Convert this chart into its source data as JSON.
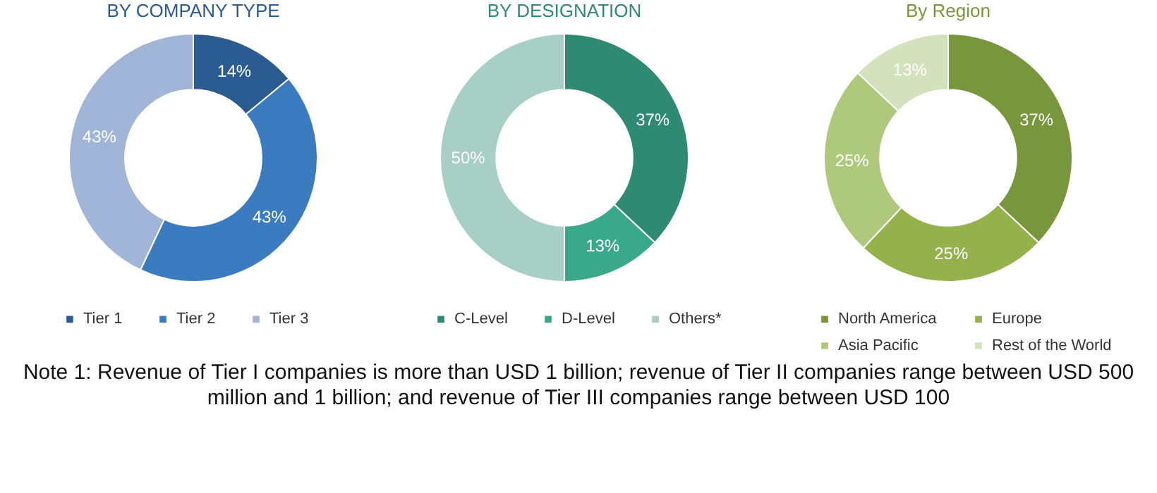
{
  "chart_data": [
    {
      "type": "donut",
      "title": "BY COMPANY TYPE",
      "categories": [
        "Tier 1",
        "Tier 2",
        "Tier 3"
      ],
      "values": [
        14,
        43,
        43
      ],
      "value_labels": [
        "14%",
        "43%",
        "43%"
      ],
      "colors": [
        "#2b5c91",
        "#3b7cc0",
        "#a0b5d8"
      ],
      "legend": "bottom",
      "annotations": [
        "Note 1: Revenue of Tier I companies is more than USD 1 billion; revenue of Tier II companies range between USD 500 million and 1 billion; and revenue of Tier III companies range between USD 100"
      ]
    },
    {
      "type": "donut",
      "title": "BY DESIGNATION",
      "categories": [
        "C-Level",
        "D-Level",
        "Others*"
      ],
      "values": [
        37,
        13,
        50
      ],
      "value_labels": [
        "37%",
        "13%",
        "50%"
      ],
      "colors": [
        "#2f8a73",
        "#3aa88b",
        "#a7cfc5"
      ],
      "legend": "bottom"
    },
    {
      "type": "donut",
      "title": "By Region",
      "categories": [
        "North America",
        "Europe",
        "Asia Pacific",
        "Rest of the World"
      ],
      "values": [
        37,
        25,
        25,
        13
      ],
      "value_labels": [
        "37%",
        "25%",
        "25%",
        "13%"
      ],
      "colors": [
        "#78963b",
        "#94b14c",
        "#aec97c",
        "#d4e1bd"
      ],
      "legend": "bottom"
    }
  ]
}
